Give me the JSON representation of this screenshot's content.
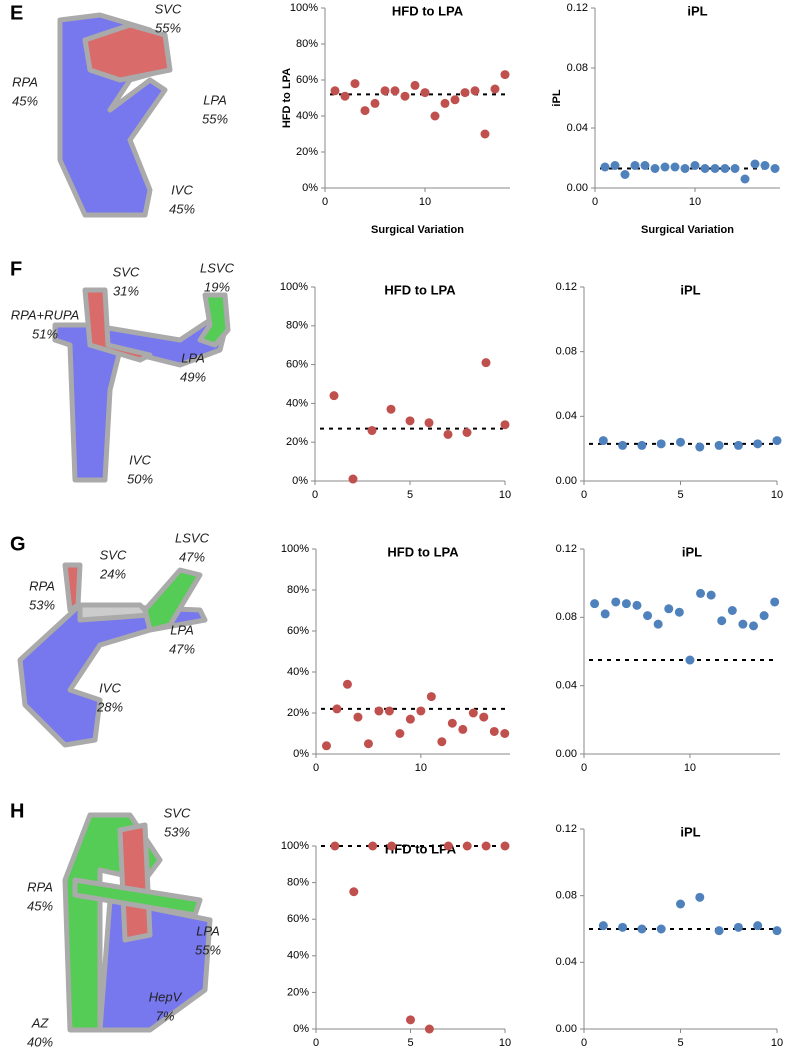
{
  "chart_data": [
    {
      "type": "scatter",
      "title": "HFD to LPA",
      "x_label": "Surgical Variation",
      "y_label": "HFD to LPA",
      "color": "#c0504d",
      "x": [
        1,
        2,
        3,
        4,
        5,
        6,
        7,
        8,
        9,
        10,
        11,
        12,
        13,
        14,
        15,
        16,
        17,
        18
      ],
      "values": [
        54,
        51,
        58,
        43,
        47,
        54,
        54,
        51,
        57,
        53,
        40,
        47,
        49,
        53,
        54,
        30,
        55,
        63
      ],
      "reference_line": 52,
      "xlim": [
        0,
        18.5
      ],
      "ylim": [
        0,
        100
      ],
      "xticks": [
        0,
        10
      ],
      "yticks": [
        {
          "value": 0,
          "label": "0%"
        },
        {
          "value": 20,
          "label": "20%"
        },
        {
          "value": 40,
          "label": "40%"
        },
        {
          "value": 60,
          "label": "60%"
        },
        {
          "value": 80,
          "label": "80%"
        },
        {
          "value": 100,
          "label": "100%"
        }
      ]
    },
    {
      "type": "scatter",
      "title": "iPL",
      "x_label": "Surgical Variation",
      "y_label": "iPL",
      "color": "#4f81bd",
      "x": [
        1,
        2,
        3,
        4,
        5,
        6,
        7,
        8,
        9,
        10,
        11,
        12,
        13,
        14,
        15,
        16,
        17,
        18
      ],
      "values": [
        0.014,
        0.015,
        0.009,
        0.015,
        0.015,
        0.013,
        0.014,
        0.014,
        0.013,
        0.015,
        0.013,
        0.013,
        0.013,
        0.013,
        0.006,
        0.016,
        0.015,
        0.013
      ],
      "reference_line": 0.013,
      "xlim": [
        0,
        18.5
      ],
      "ylim": [
        0,
        0.12
      ],
      "xticks": [
        0,
        10
      ],
      "yticks": [
        {
          "value": 0,
          "label": "0.00"
        },
        {
          "value": 0.04,
          "label": "0.04"
        },
        {
          "value": 0.08,
          "label": "0.08"
        },
        0.12
      ]
    },
    {
      "type": "scatter",
      "title": "HFD to LPA",
      "color": "#c0504d",
      "x": [
        1,
        2,
        3,
        4,
        5,
        6,
        7,
        8,
        9,
        10
      ],
      "values": [
        44,
        1,
        26,
        37,
        31,
        30,
        24,
        25,
        61,
        29
      ],
      "reference_line": 27,
      "xlim": [
        0,
        10
      ],
      "ylim": [
        0,
        100
      ],
      "xticks": [
        0,
        5,
        10
      ],
      "yticks": [
        {
          "value": 0,
          "label": "0%"
        },
        {
          "value": 20,
          "label": "20%"
        },
        {
          "value": 40,
          "label": "40%"
        },
        {
          "value": 60,
          "label": "60%"
        },
        {
          "value": 80,
          "label": "80%"
        },
        {
          "value": 100,
          "label": "100%"
        }
      ]
    },
    {
      "type": "scatter",
      "title": "iPL",
      "color": "#4f81bd",
      "x": [
        1,
        2,
        3,
        4,
        5,
        6,
        7,
        8,
        9,
        10
      ],
      "values": [
        0.025,
        0.022,
        0.022,
        0.023,
        0.024,
        0.021,
        0.022,
        0.022,
        0.023,
        0.025
      ],
      "reference_line": 0.023,
      "xlim": [
        0,
        10
      ],
      "ylim": [
        0,
        0.12
      ],
      "xticks": [
        0,
        5,
        10
      ],
      "yticks": [
        {
          "value": 0,
          "label": "0.00"
        },
        {
          "value": 0.04,
          "label": "0.04"
        },
        {
          "value": 0.08,
          "label": "0.08"
        },
        0.12
      ]
    },
    {
      "type": "scatter",
      "title": "HFD to LPA",
      "color": "#c0504d",
      "x": [
        1,
        2,
        3,
        4,
        5,
        6,
        7,
        8,
        9,
        10,
        11,
        12,
        13,
        14,
        15,
        16,
        17,
        18
      ],
      "values": [
        4,
        22,
        34,
        18,
        5,
        21,
        21,
        10,
        17,
        21,
        28,
        6,
        15,
        12,
        20,
        18,
        11,
        10
      ],
      "reference_line": 22,
      "xlim": [
        0,
        18.5
      ],
      "ylim": [
        0,
        100
      ],
      "xticks": [
        0,
        10
      ],
      "yticks": [
        {
          "value": 0,
          "label": "0%"
        },
        {
          "value": 20,
          "label": "20%"
        },
        {
          "value": 40,
          "label": "40%"
        },
        {
          "value": 60,
          "label": "60%"
        },
        {
          "value": 80,
          "label": "80%"
        },
        {
          "value": 100,
          "label": "100%"
        }
      ]
    },
    {
      "type": "scatter",
      "title": "iPL",
      "color": "#4f81bd",
      "x": [
        1,
        2,
        3,
        4,
        5,
        6,
        7,
        8,
        9,
        10,
        11,
        12,
        13,
        14,
        15,
        16,
        17,
        18
      ],
      "values": [
        0.088,
        0.082,
        0.089,
        0.088,
        0.087,
        0.081,
        0.076,
        0.085,
        0.083,
        0.055,
        0.094,
        0.093,
        0.078,
        0.084,
        0.076,
        0.075,
        0.081,
        0.089
      ],
      "reference_line": 0.055,
      "xlim": [
        0,
        18.5
      ],
      "ylim": [
        0,
        0.12
      ],
      "xticks": [
        0,
        10
      ],
      "yticks": [
        {
          "value": 0,
          "label": "0.00"
        },
        {
          "value": 0.04,
          "label": "0.04"
        },
        {
          "value": 0.08,
          "label": "0.08"
        },
        0.12
      ]
    },
    {
      "type": "scatter",
      "title": "HFD to LPA",
      "color": "#c0504d",
      "x": [
        1,
        2,
        3,
        4,
        5,
        6,
        7,
        8,
        9,
        10
      ],
      "values": [
        100,
        75,
        100,
        100,
        5,
        0,
        100,
        100,
        100,
        100
      ],
      "reference_line": 100,
      "xlim": [
        0,
        10
      ],
      "ylim": [
        0,
        100
      ],
      "xticks": [
        0,
        5,
        10
      ],
      "yticks": [
        {
          "value": 0,
          "label": "0%"
        },
        {
          "value": 20,
          "label": "20%"
        },
        {
          "value": 40,
          "label": "40%"
        },
        {
          "value": 60,
          "label": "60%"
        },
        {
          "value": 80,
          "label": "80%"
        },
        {
          "value": 100,
          "label": "100%"
        }
      ]
    },
    {
      "type": "scatter",
      "title": "iPL",
      "color": "#4f81bd",
      "x": [
        1,
        2,
        3,
        4,
        5,
        6,
        7,
        8,
        9,
        10
      ],
      "values": [
        0.062,
        0.061,
        0.06,
        0.06,
        0.075,
        0.079,
        0.059,
        0.061,
        0.062,
        0.059
      ],
      "reference_line": 0.06,
      "xlim": [
        0,
        10
      ],
      "ylim": [
        0,
        0.12
      ],
      "xticks": [
        0,
        5,
        10
      ],
      "yticks": [
        {
          "value": 0,
          "label": "0.00"
        },
        {
          "value": 0.04,
          "label": "0.04"
        },
        {
          "value": 0.08,
          "label": "0.08"
        },
        0.12
      ]
    }
  ],
  "panels": [
    {
      "letter": "E",
      "labels": [
        {
          "vessel": "SVC",
          "flow": "55%"
        },
        {
          "vessel": "RPA",
          "flow": "45%"
        },
        {
          "vessel": "LPA",
          "flow": "55%"
        },
        {
          "vessel": "IVC",
          "flow": "45%"
        }
      ]
    },
    {
      "letter": "F",
      "labels": [
        {
          "vessel": "SVC",
          "flow": "31%"
        },
        {
          "vessel": "LSVC",
          "flow": "19%"
        },
        {
          "vessel": "RPA+RUPA",
          "flow": "51%"
        },
        {
          "vessel": "LPA",
          "flow": "49%"
        },
        {
          "vessel": "IVC",
          "flow": "50%"
        }
      ]
    },
    {
      "letter": "G",
      "labels": [
        {
          "vessel": "SVC",
          "flow": "24%"
        },
        {
          "vessel": "LSVC",
          "flow": "47%"
        },
        {
          "vessel": "RPA",
          "flow": "53%"
        },
        {
          "vessel": "LPA",
          "flow": "47%"
        },
        {
          "vessel": "IVC",
          "flow": "28%"
        }
      ]
    },
    {
      "letter": "H",
      "labels": [
        {
          "vessel": "SVC",
          "flow": "53%"
        },
        {
          "vessel": "RPA",
          "flow": "45%"
        },
        {
          "vessel": "LPA",
          "flow": "55%"
        },
        {
          "vessel": "HepV",
          "flow": "7%"
        },
        {
          "vessel": "AZ",
          "flow": "40%"
        }
      ]
    }
  ]
}
